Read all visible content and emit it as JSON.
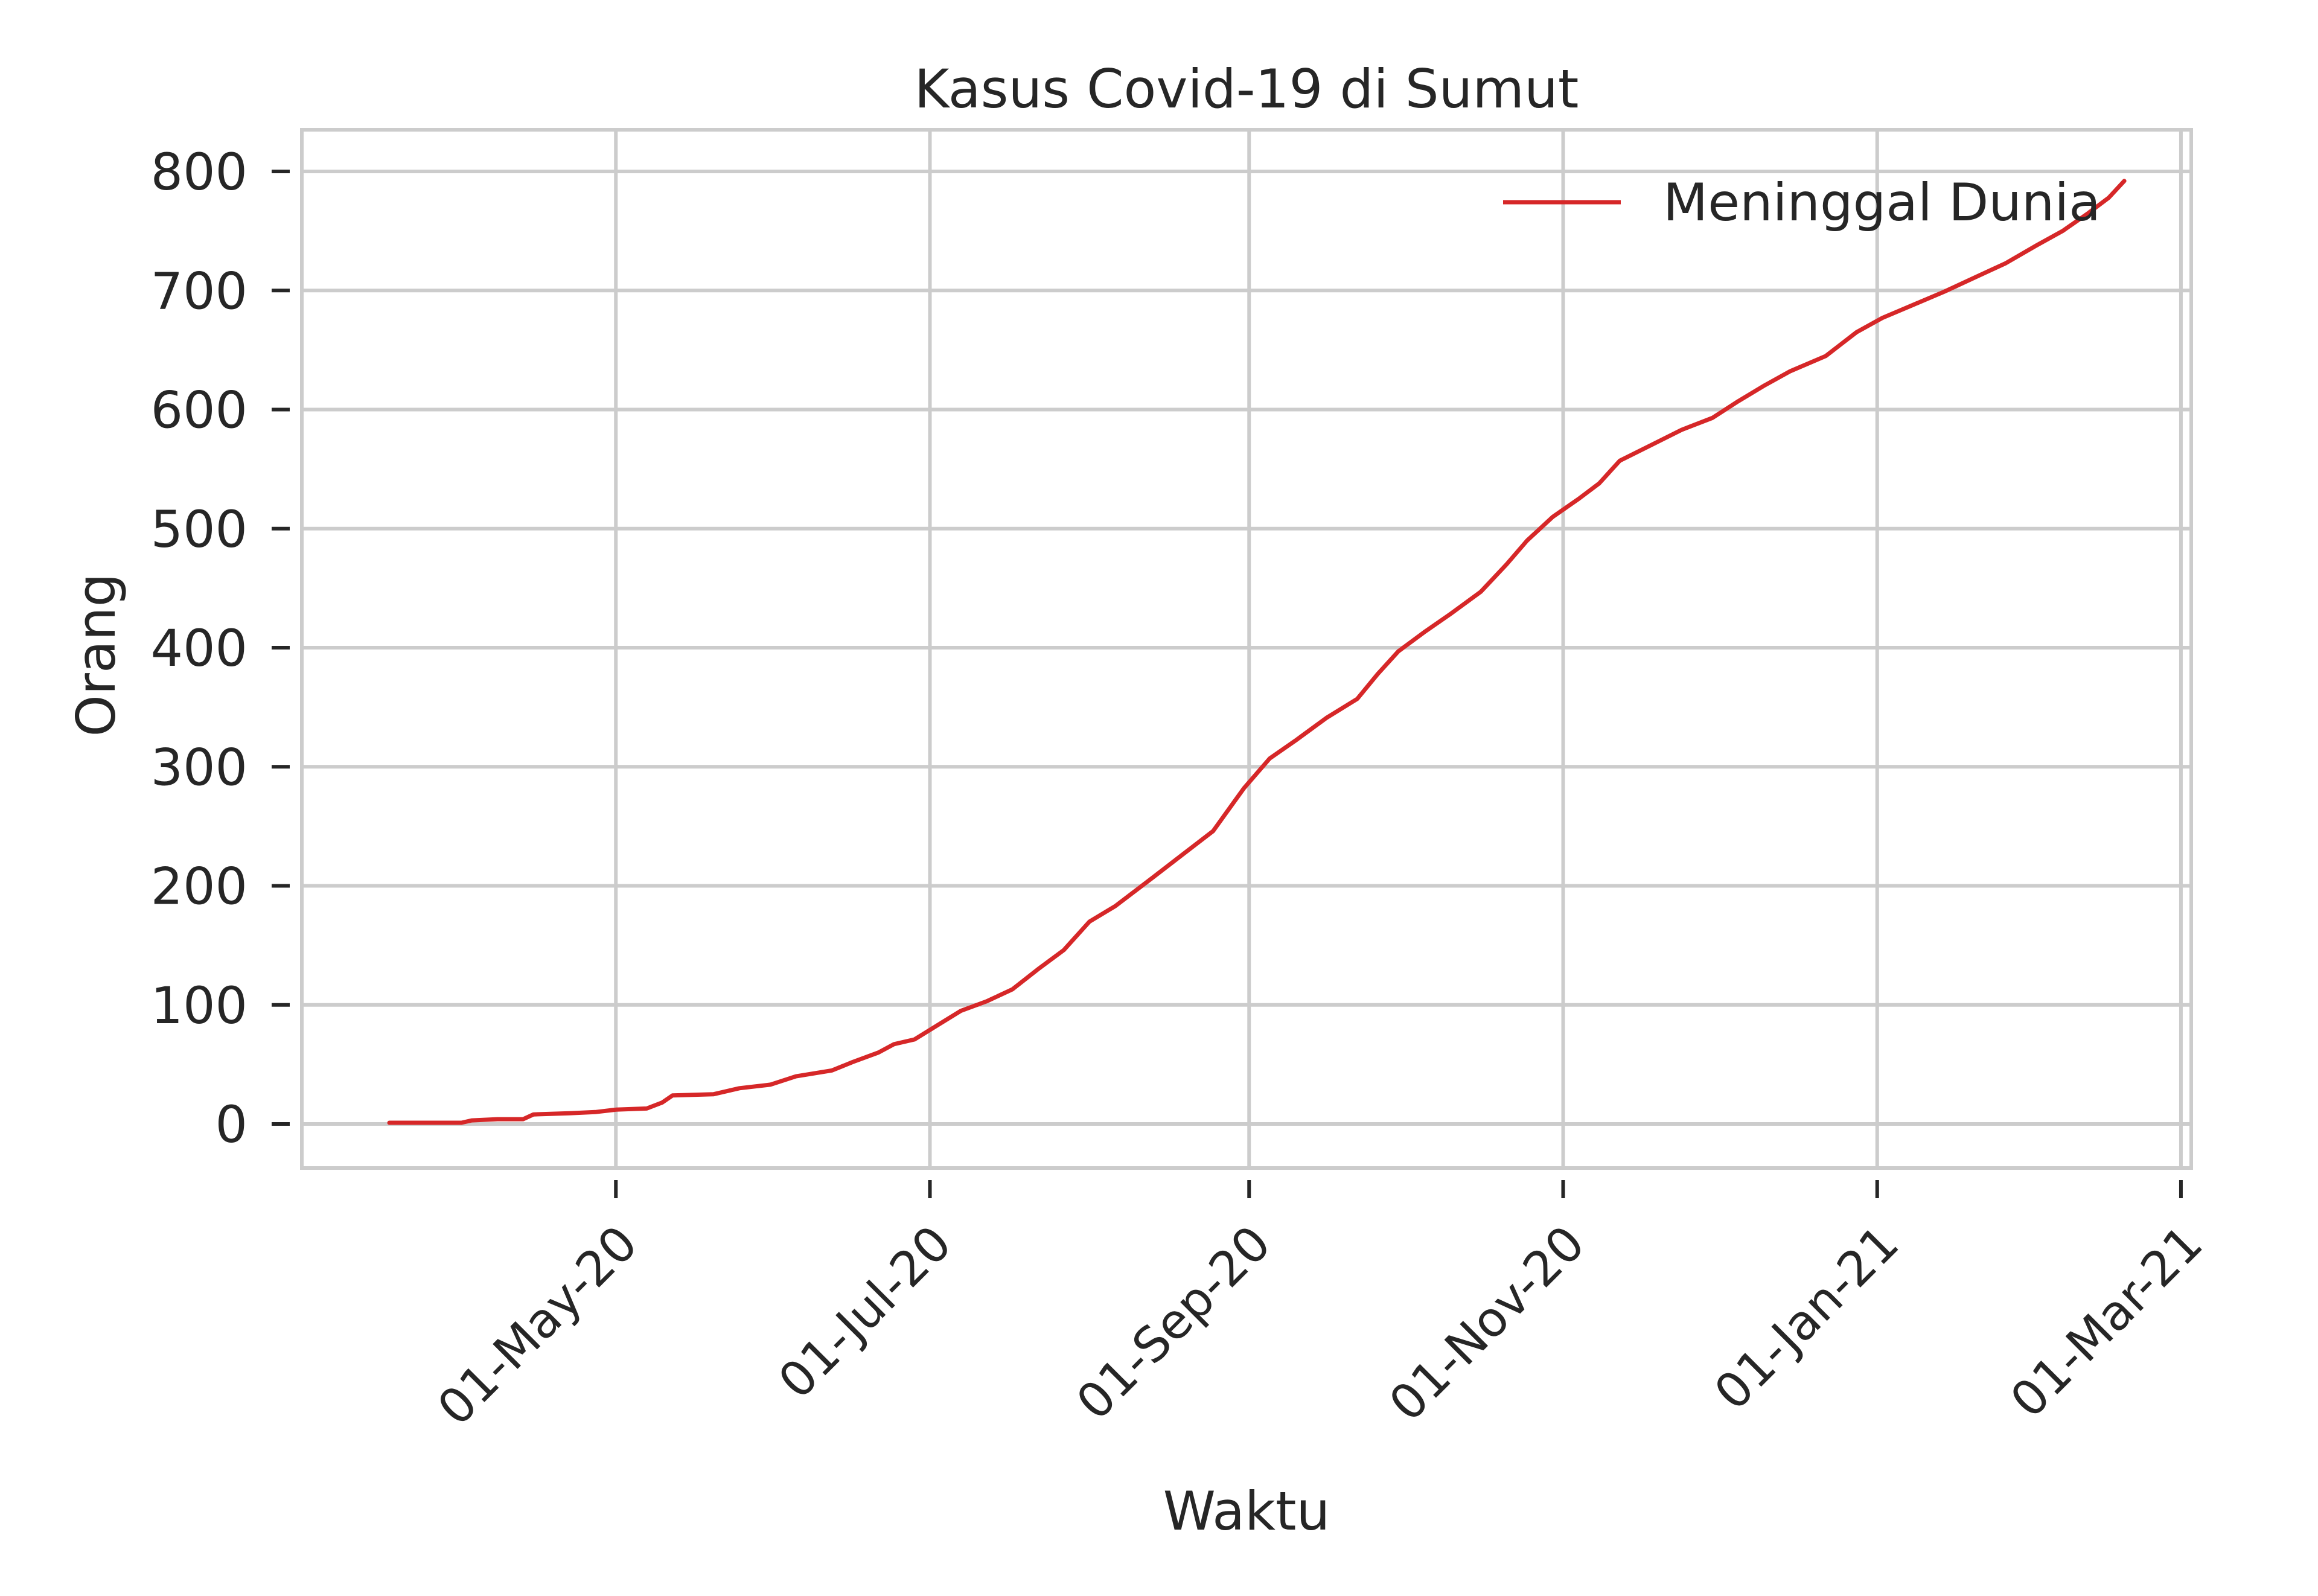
{
  "chart_data": {
    "type": "line",
    "title": "Kasus Covid-19 di Sumut",
    "xlabel": "Waktu",
    "ylabel": "Orang",
    "xlim": [
      "2020-03-01",
      "2021-03-03"
    ],
    "ylim": [
      -37,
      835
    ],
    "grid": true,
    "legend_position": "upper-right",
    "x_ticks": [
      "2020-05-01",
      "2020-07-01",
      "2020-09-01",
      "2020-11-01",
      "2021-01-01",
      "2021-03-01"
    ],
    "x_tick_labels": [
      "01-May-20",
      "01-Jul-20",
      "01-Sep-20",
      "01-Nov-20",
      "01-Jan-21",
      "01-Mar-21"
    ],
    "y_ticks": [
      0,
      100,
      200,
      300,
      400,
      500,
      600,
      700,
      800
    ],
    "y_tick_labels": [
      "0",
      "100",
      "200",
      "300",
      "400",
      "500",
      "600",
      "700",
      "800"
    ],
    "colors": {
      "series": "#d62728",
      "grid": "#cccccc",
      "spine": "#cccccc",
      "text": "#262626"
    },
    "series": [
      {
        "name": "Meninggal Dunia",
        "points": [
          [
            "2020-03-18",
            1
          ],
          [
            "2020-03-25",
            1
          ],
          [
            "2020-04-01",
            1
          ],
          [
            "2020-04-03",
            3
          ],
          [
            "2020-04-08",
            4
          ],
          [
            "2020-04-13",
            4
          ],
          [
            "2020-04-15",
            8
          ],
          [
            "2020-04-22",
            9
          ],
          [
            "2020-04-27",
            10
          ],
          [
            "2020-05-01",
            12
          ],
          [
            "2020-05-07",
            13
          ],
          [
            "2020-05-10",
            18
          ],
          [
            "2020-05-12",
            24
          ],
          [
            "2020-05-20",
            25
          ],
          [
            "2020-05-25",
            30
          ],
          [
            "2020-05-31",
            33
          ],
          [
            "2020-06-05",
            40
          ],
          [
            "2020-06-12",
            45
          ],
          [
            "2020-06-16",
            52
          ],
          [
            "2020-06-21",
            60
          ],
          [
            "2020-06-24",
            67
          ],
          [
            "2020-06-28",
            71
          ],
          [
            "2020-07-04",
            87
          ],
          [
            "2020-07-07",
            95
          ],
          [
            "2020-07-12",
            103
          ],
          [
            "2020-07-17",
            113
          ],
          [
            "2020-07-22",
            130
          ],
          [
            "2020-07-27",
            146
          ],
          [
            "2020-08-01",
            170
          ],
          [
            "2020-08-06",
            183
          ],
          [
            "2020-08-13",
            206
          ],
          [
            "2020-08-19",
            226
          ],
          [
            "2020-08-25",
            246
          ],
          [
            "2020-08-31",
            282
          ],
          [
            "2020-09-05",
            307
          ],
          [
            "2020-09-10",
            322
          ],
          [
            "2020-09-16",
            341
          ],
          [
            "2020-09-22",
            357
          ],
          [
            "2020-09-26",
            378
          ],
          [
            "2020-09-30",
            397
          ],
          [
            "2020-10-05",
            413
          ],
          [
            "2020-10-10",
            428
          ],
          [
            "2020-10-16",
            447
          ],
          [
            "2020-10-21",
            470
          ],
          [
            "2020-10-25",
            490
          ],
          [
            "2020-10-30",
            510
          ],
          [
            "2020-11-04",
            525
          ],
          [
            "2020-11-08",
            538
          ],
          [
            "2020-11-12",
            557
          ],
          [
            "2020-11-18",
            570
          ],
          [
            "2020-11-24",
            583
          ],
          [
            "2020-11-30",
            593
          ],
          [
            "2020-12-05",
            607
          ],
          [
            "2020-12-10",
            620
          ],
          [
            "2020-12-15",
            632
          ],
          [
            "2020-12-22",
            645
          ],
          [
            "2020-12-28",
            665
          ],
          [
            "2021-01-02",
            677
          ],
          [
            "2021-01-08",
            688
          ],
          [
            "2021-01-14",
            699
          ],
          [
            "2021-01-20",
            711
          ],
          [
            "2021-01-26",
            723
          ],
          [
            "2021-02-01",
            738
          ],
          [
            "2021-02-06",
            750
          ],
          [
            "2021-02-11",
            765
          ],
          [
            "2021-02-15",
            778
          ],
          [
            "2021-02-18",
            792
          ]
        ]
      }
    ]
  }
}
